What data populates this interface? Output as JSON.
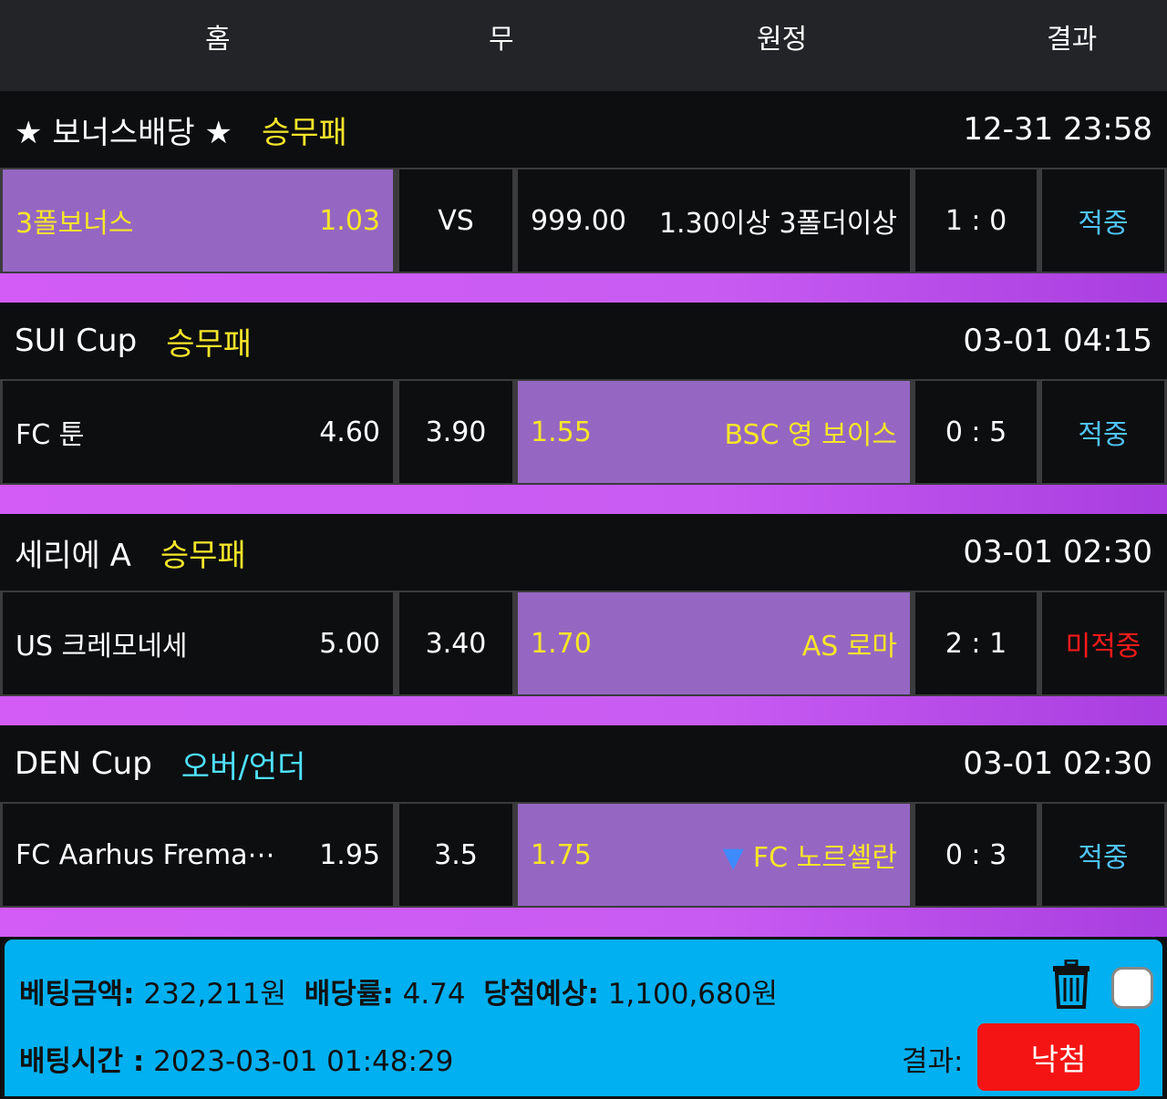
{
  "header": {
    "home": "홈",
    "draw": "무",
    "away": "원정",
    "result": "결과"
  },
  "sections": [
    {
      "league": "★ 보너스배당 ★",
      "type": "승무패",
      "time": "12-31 23:58",
      "home": "3폴보너스",
      "home_odds": "1.03",
      "draw": "VS",
      "away_odds": "999.00",
      "away": "1.30이상 3폴더이상",
      "score": "1 : 0",
      "result": "적중",
      "selected": "home"
    },
    {
      "league": "SUI Cup",
      "type": "승무패",
      "time": "03-01 04:15",
      "home": "FC 툰",
      "home_odds": "4.60",
      "draw": "3.90",
      "away_odds": "1.55",
      "away": "BSC 영 보이스",
      "score": "0 : 5",
      "result": "적중",
      "selected": "away"
    },
    {
      "league": "세리에 A",
      "type": "승무패",
      "time": "03-01 02:30",
      "home": "US 크레모네세",
      "home_odds": "5.00",
      "draw": "3.40",
      "away_odds": "1.70",
      "away": "AS 로마",
      "score": "2 : 1",
      "result": "미적중",
      "selected": "away"
    },
    {
      "league": "DEN Cup",
      "type": "오버/언더",
      "time": "03-01 02:30",
      "home": "FC Aarhus Frema⋯",
      "home_odds": "1.95",
      "draw": "3.5",
      "away_odds": "1.75",
      "away": "FC 노르셸란",
      "away_arrow": "▼",
      "score": "0 : 3",
      "result": "적중",
      "selected": "away"
    }
  ],
  "summary": {
    "bet_label": "베팅금액:",
    "bet_amount": "232,211원",
    "odds_label": "배당률:",
    "odds": "4.74",
    "win_label": "당첨예상:",
    "win_amount": "1,100,680원",
    "time_label": "배팅시간 :",
    "time": "2023-03-01 01:48:29",
    "result_label": "결과:",
    "result": "낙첨"
  },
  "colors": {
    "selected": "#9567c2",
    "hit": "#4fc3f7",
    "miss": "#ff1a1a",
    "panel": "#00b0f0",
    "lose_button": "#f51414"
  }
}
